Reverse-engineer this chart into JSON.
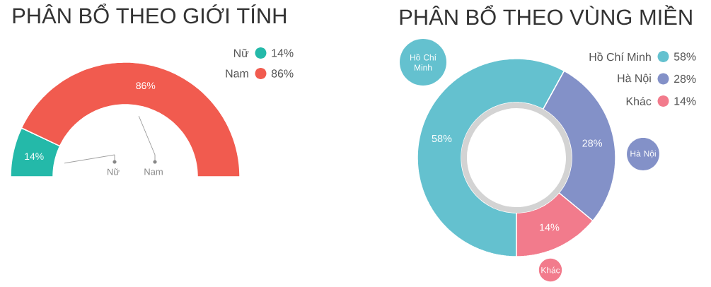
{
  "chart_data": [
    {
      "type": "donut",
      "title": "PHÂN BỔ THEO GIỚI TÍNH",
      "categories": [
        "Nữ",
        "Nam"
      ],
      "values": [
        14,
        86
      ],
      "colors": [
        "#24b9a9",
        "#f15b4f"
      ],
      "value_labels": [
        "14%",
        "86%"
      ],
      "legend": "top right"
    },
    {
      "type": "donut",
      "title": "PHÂN BỔ THEO VÙNG MIỀN",
      "categories": [
        "Hồ Chí Minh",
        "Hà Nội",
        "Khác"
      ],
      "values": [
        58,
        28,
        14
      ],
      "colors": [
        "#64c1cf",
        "#8391c8",
        "#f27b8c"
      ],
      "value_labels": [
        "58%",
        "28%",
        "14%"
      ],
      "legend": "top right"
    }
  ]
}
